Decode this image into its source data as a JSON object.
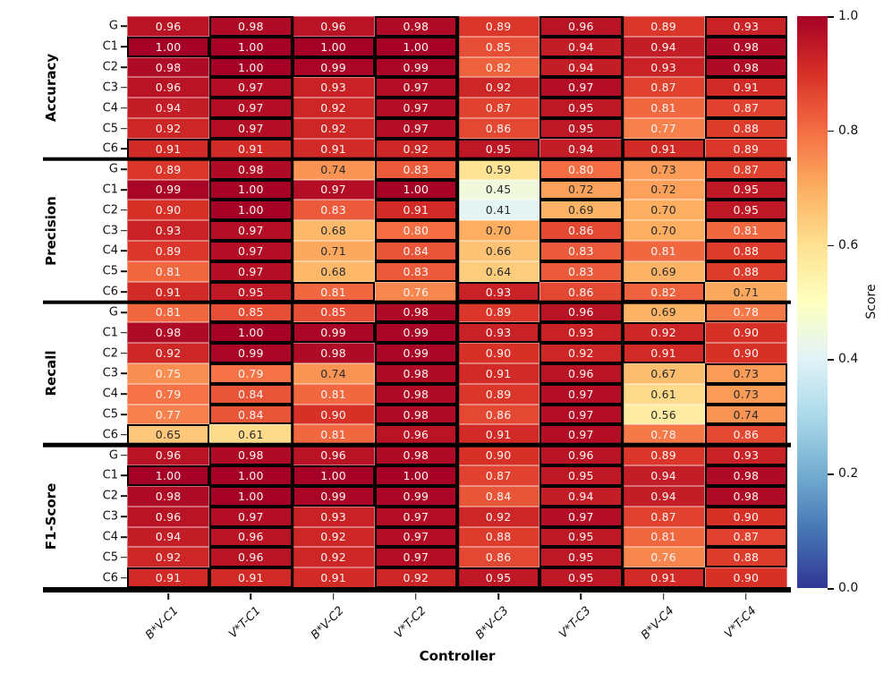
{
  "chart_data": {
    "type": "heatmap",
    "xlabel": "Controller",
    "colorbar_label": "Score",
    "colormap": "RdYlBu_r",
    "vmin": 0.0,
    "vmax": 1.0,
    "colorbar_ticks": [
      "1.0",
      "0.8",
      "0.6",
      "0.4",
      "0.2",
      "0.0"
    ],
    "colorbar_tick_values": [
      1.0,
      0.8,
      0.6,
      0.4,
      0.2,
      0.0
    ],
    "columns": [
      "B*V-C1",
      "V*T-C1",
      "B*V-C2",
      "V*T-C2",
      "B*V-C3",
      "V*T-C3",
      "B*V-C4",
      "V*T-C4"
    ],
    "row_labels": [
      "G",
      "C1",
      "C2",
      "C3",
      "C4",
      "C5",
      "C6"
    ],
    "highlight_rule": "max-within-column-pair-per-row",
    "row_groups": [
      {
        "name": "Accuracy",
        "values": [
          [
            0.96,
            0.98,
            0.96,
            0.98,
            0.89,
            0.96,
            0.89,
            0.93
          ],
          [
            1.0,
            1.0,
            1.0,
            1.0,
            0.85,
            0.94,
            0.94,
            0.98
          ],
          [
            0.98,
            1.0,
            0.99,
            0.99,
            0.82,
            0.94,
            0.93,
            0.98
          ],
          [
            0.96,
            0.97,
            0.93,
            0.97,
            0.92,
            0.97,
            0.87,
            0.91
          ],
          [
            0.94,
            0.97,
            0.92,
            0.97,
            0.87,
            0.95,
            0.81,
            0.87
          ],
          [
            0.92,
            0.97,
            0.92,
            0.97,
            0.86,
            0.95,
            0.77,
            0.88
          ],
          [
            0.91,
            0.91,
            0.91,
            0.92,
            0.95,
            0.94,
            0.91,
            0.89
          ]
        ]
      },
      {
        "name": "Precision",
        "values": [
          [
            0.89,
            0.98,
            0.74,
            0.83,
            0.59,
            0.8,
            0.73,
            0.87
          ],
          [
            0.99,
            1.0,
            0.97,
            1.0,
            0.45,
            0.72,
            0.72,
            0.95
          ],
          [
            0.9,
            1.0,
            0.83,
            0.91,
            0.41,
            0.69,
            0.7,
            0.95
          ],
          [
            0.93,
            0.97,
            0.68,
            0.8,
            0.7,
            0.86,
            0.7,
            0.81
          ],
          [
            0.89,
            0.97,
            0.71,
            0.84,
            0.66,
            0.83,
            0.81,
            0.88
          ],
          [
            0.81,
            0.97,
            0.68,
            0.83,
            0.64,
            0.83,
            0.69,
            0.88
          ],
          [
            0.91,
            0.95,
            0.81,
            0.76,
            0.93,
            0.86,
            0.82,
            0.71
          ]
        ]
      },
      {
        "name": "Recall",
        "values": [
          [
            0.81,
            0.85,
            0.85,
            0.98,
            0.89,
            0.96,
            0.69,
            0.78
          ],
          [
            0.98,
            1.0,
            0.99,
            0.99,
            0.93,
            0.93,
            0.92,
            0.9
          ],
          [
            0.92,
            0.99,
            0.98,
            0.99,
            0.9,
            0.92,
            0.91,
            0.9
          ],
          [
            0.75,
            0.79,
            0.74,
            0.98,
            0.91,
            0.96,
            0.67,
            0.73
          ],
          [
            0.79,
            0.84,
            0.81,
            0.98,
            0.89,
            0.97,
            0.61,
            0.73
          ],
          [
            0.77,
            0.84,
            0.9,
            0.98,
            0.86,
            0.97,
            0.56,
            0.74
          ],
          [
            0.65,
            0.61,
            0.81,
            0.96,
            0.91,
            0.97,
            0.78,
            0.86
          ]
        ]
      },
      {
        "name": "F1-Score",
        "values": [
          [
            0.96,
            0.98,
            0.96,
            0.98,
            0.9,
            0.96,
            0.89,
            0.93
          ],
          [
            1.0,
            1.0,
            1.0,
            1.0,
            0.87,
            0.95,
            0.94,
            0.98
          ],
          [
            0.98,
            1.0,
            0.99,
            0.99,
            0.84,
            0.94,
            0.94,
            0.98
          ],
          [
            0.96,
            0.97,
            0.93,
            0.97,
            0.92,
            0.97,
            0.87,
            0.9
          ],
          [
            0.94,
            0.96,
            0.92,
            0.97,
            0.88,
            0.95,
            0.81,
            0.87
          ],
          [
            0.92,
            0.96,
            0.92,
            0.97,
            0.86,
            0.95,
            0.76,
            0.88
          ],
          [
            0.91,
            0.91,
            0.91,
            0.92,
            0.95,
            0.95,
            0.91,
            0.9
          ]
        ]
      }
    ],
    "colors": {
      "rdylbu_anchors": [
        "#a50026",
        "#d73027",
        "#f46d43",
        "#fdae61",
        "#fee090",
        "#ffffbf",
        "#e0f3f8",
        "#abd9e9",
        "#74add1",
        "#4575b4",
        "#313695"
      ],
      "highlight_border": "#000000",
      "text_light": "#fbf5f2",
      "text_dark": "#2b2b2b"
    }
  }
}
